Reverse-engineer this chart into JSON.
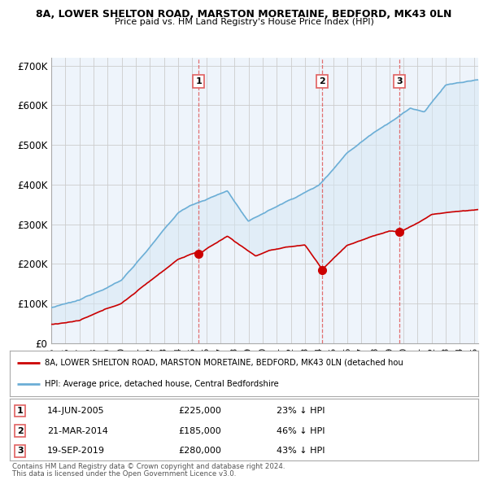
{
  "title1": "8A, LOWER SHELTON ROAD, MARSTON MORETAINE, BEDFORD, MK43 0LN",
  "title2": "Price paid vs. HM Land Registry's House Price Index (HPI)",
  "xlim_start": 1995.0,
  "xlim_end": 2025.3,
  "ylim": [
    0,
    720000
  ],
  "yticks": [
    0,
    100000,
    200000,
    300000,
    400000,
    500000,
    600000,
    700000
  ],
  "ytick_labels": [
    "£0",
    "£100K",
    "£200K",
    "£300K",
    "£400K",
    "£500K",
    "£600K",
    "£700K"
  ],
  "sale_dates": [
    2005.45,
    2014.22,
    2019.72
  ],
  "sale_prices": [
    225000,
    185000,
    280000
  ],
  "sale_labels": [
    "1",
    "2",
    "3"
  ],
  "sale_info": [
    {
      "num": "1",
      "date": "14-JUN-2005",
      "price": "£225,000",
      "pct": "23% ↓ HPI"
    },
    {
      "num": "2",
      "date": "21-MAR-2014",
      "price": "£185,000",
      "pct": "46% ↓ HPI"
    },
    {
      "num": "3",
      "date": "19-SEP-2019",
      "price": "£280,000",
      "pct": "43% ↓ HPI"
    }
  ],
  "legend_line1": "8A, LOWER SHELTON ROAD, MARSTON MORETAINE, BEDFORD, MK43 0LN (detached hou",
  "legend_line2": "HPI: Average price, detached house, Central Bedfordshire",
  "footer1": "Contains HM Land Registry data © Crown copyright and database right 2024.",
  "footer2": "This data is licensed under the Open Government Licence v3.0.",
  "hpi_color": "#6baed6",
  "hpi_fill_color": "#d6e8f5",
  "price_color": "#cc0000",
  "vline_color": "#e06060",
  "background_color": "#ffffff",
  "grid_color": "#cccccc"
}
